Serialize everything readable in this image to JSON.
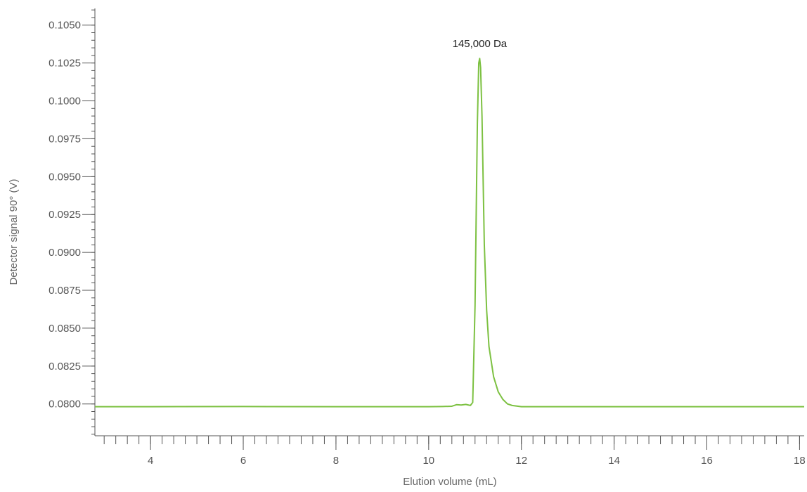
{
  "chart_data": {
    "type": "line",
    "title": "",
    "xlabel": "Elution volume (mL)",
    "ylabel": "Detector signal 90° (V)",
    "xlim": [
      2.8,
      18.1
    ],
    "ylim": [
      0.0779,
      0.1061
    ],
    "x_major_ticks": [
      4,
      6,
      8,
      10,
      12,
      14,
      16,
      18
    ],
    "x_tick_labels": [
      "4",
      "6",
      "8",
      "10",
      "12",
      "14",
      "16",
      "18"
    ],
    "x_minor_step": 0.25,
    "y_major_ticks": [
      0.08,
      0.0825,
      0.085,
      0.0875,
      0.09,
      0.0925,
      0.095,
      0.0975,
      0.1,
      0.1025,
      0.105
    ],
    "y_tick_labels": [
      "0.0800",
      "0.0825",
      "0.0850",
      "0.0875",
      "0.0900",
      "0.0925",
      "0.0950",
      "0.0975",
      "0.1000",
      "0.1025",
      "0.1050"
    ],
    "y_minor_step": 0.0005,
    "grid": false,
    "series": [
      {
        "color": "#7DC142",
        "x": [
          2.8,
          4.0,
          6.0,
          8.0,
          10.0,
          10.3,
          10.5,
          10.6,
          10.7,
          10.8,
          10.9,
          10.95,
          11.0,
          11.05,
          11.08,
          11.1,
          11.12,
          11.15,
          11.2,
          11.25,
          11.3,
          11.4,
          11.5,
          11.6,
          11.7,
          11.8,
          12.0,
          14.0,
          16.0,
          18.1
        ],
        "y": [
          0.07982,
          0.07982,
          0.07983,
          0.07982,
          0.07982,
          0.07983,
          0.07985,
          0.07995,
          0.07993,
          0.07997,
          0.0799,
          0.0801,
          0.0865,
          0.0985,
          0.1025,
          0.1028,
          0.1022,
          0.099,
          0.0905,
          0.0862,
          0.0838,
          0.0818,
          0.0808,
          0.0803,
          0.08,
          0.0799,
          0.07982,
          0.07982,
          0.07982,
          0.07982
        ]
      }
    ],
    "annotations": [
      {
        "text": "145,000 Da",
        "x": 11.1,
        "y": 0.1028
      }
    ]
  }
}
